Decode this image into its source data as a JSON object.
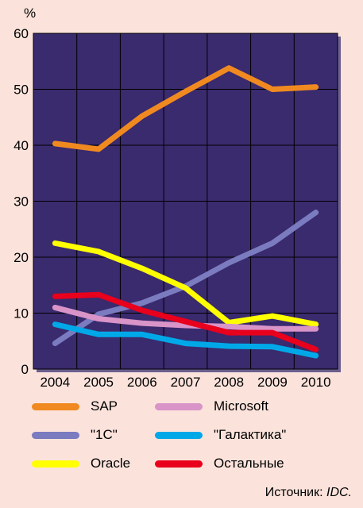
{
  "chart_data": {
    "type": "line",
    "title": "",
    "xlabel": "",
    "ylabel": "%",
    "x": [
      "2004",
      "2005",
      "2006",
      "2007",
      "2008",
      "2009",
      "2010"
    ],
    "ylim": [
      0,
      60
    ],
    "yticks": [
      "0",
      "10",
      "20",
      "30",
      "40",
      "50",
      "60"
    ],
    "grid": true,
    "legend_position": "bottom",
    "background": "#3a2a6e",
    "series": [
      {
        "name": "SAP",
        "color": "#f08a20",
        "values": [
          40.3,
          39.3,
          45.2,
          49.6,
          53.8,
          50.0,
          50.4
        ]
      },
      {
        "name": "\"1С\"",
        "color": "#7b7bc0",
        "values": [
          4.6,
          9.8,
          11.8,
          14.8,
          19.0,
          22.5,
          28.0
        ]
      },
      {
        "name": "Oracle",
        "color": "#ffff00",
        "values": [
          22.5,
          21.0,
          18.0,
          14.5,
          8.3,
          9.5,
          8.0
        ]
      },
      {
        "name": "Microsoft",
        "color": "#d994c8",
        "values": [
          11.0,
          9.0,
          8.2,
          7.8,
          7.6,
          7.2,
          7.2
        ]
      },
      {
        "name": "\"Галактика\"",
        "color": "#00a8e8",
        "values": [
          8.0,
          6.2,
          6.2,
          4.6,
          4.1,
          4.0,
          2.4
        ]
      },
      {
        "name": "Остальные",
        "color": "#e8001c",
        "values": [
          13.0,
          13.3,
          10.5,
          8.5,
          6.5,
          6.5,
          3.5
        ]
      }
    ]
  },
  "legend_order": [
    0,
    3,
    1,
    4,
    2,
    5
  ],
  "source": {
    "label": "Источник:",
    "value": "IDC."
  }
}
